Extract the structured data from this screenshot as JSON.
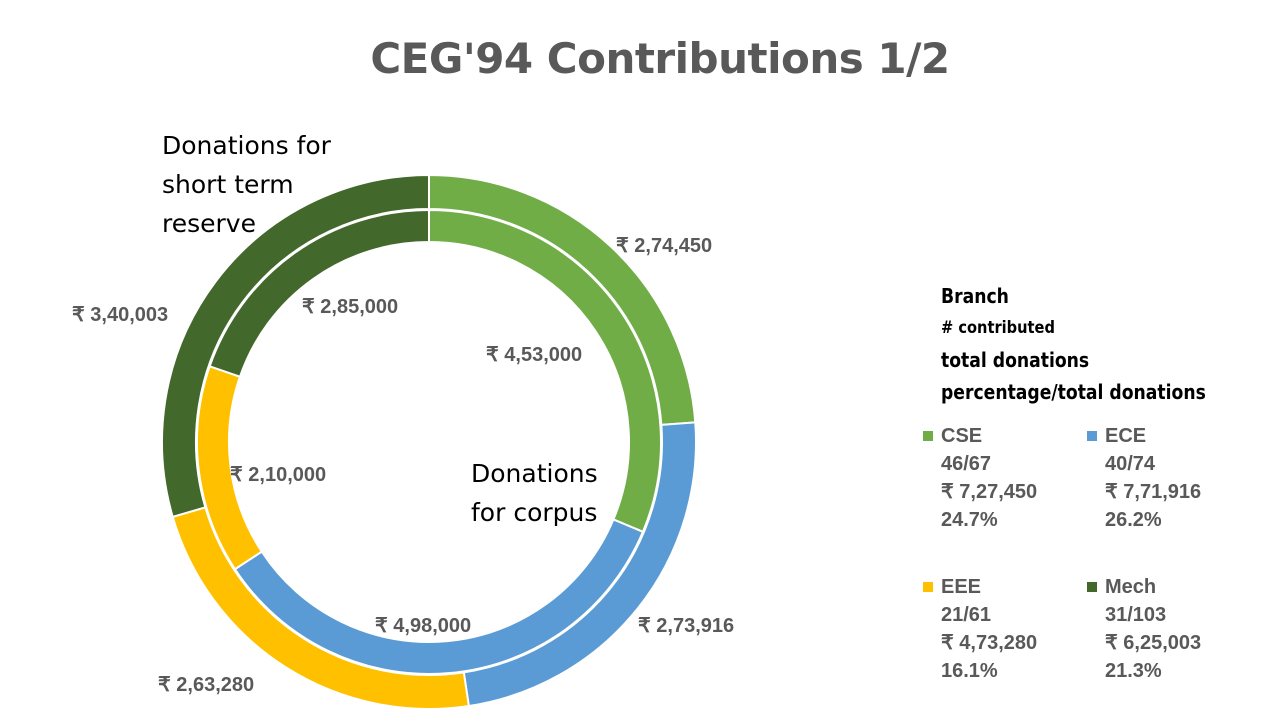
{
  "chart_data": {
    "type": "donut",
    "title": "CEG'94 Contributions 1/2",
    "categories": [
      "CSE",
      "ECE",
      "EEE",
      "Mech"
    ],
    "colors": {
      "CSE": "#70ad47",
      "ECE": "#5b9bd5",
      "EEE": "#ffc000",
      "Mech": "#43682b"
    },
    "series": [
      {
        "name": "Donations for corpus",
        "values": [
          453000,
          498000,
          210000,
          285000
        ],
        "labels": [
          "₹ 4,53,000",
          "₹ 4,98,000",
          "₹ 2,10,000",
          "₹ 2,85,000"
        ]
      },
      {
        "name": "Donations for short term reserve",
        "values": [
          274450,
          273916,
          263280,
          340003
        ],
        "labels": [
          "₹ 2,74,450",
          "₹ 2,73,916",
          "₹ 2,63,280",
          "₹ 3,40,003"
        ]
      }
    ],
    "ring_captions": {
      "inner": [
        "Donations",
        "for corpus"
      ],
      "outer": [
        "Donations for",
        "short term",
        "reserve"
      ]
    },
    "legend": {
      "placement": "right",
      "header": [
        "Branch",
        "# contributed",
        "total donations",
        "percentage/total donations"
      ],
      "entries": [
        {
          "branch": "CSE",
          "contributed": "46/67",
          "total": "₹ 7,27,450",
          "percent": "24.7%"
        },
        {
          "branch": "ECE",
          "contributed": "40/74",
          "total": "₹ 7,71,916",
          "percent": "26.2%"
        },
        {
          "branch": "EEE",
          "contributed": "21/61",
          "total": "₹ 4,73,280",
          "percent": "16.1%"
        },
        {
          "branch": "Mech",
          "contributed": "31/103",
          "total": "₹ 6,25,003",
          "percent": "21.3%"
        }
      ]
    }
  }
}
